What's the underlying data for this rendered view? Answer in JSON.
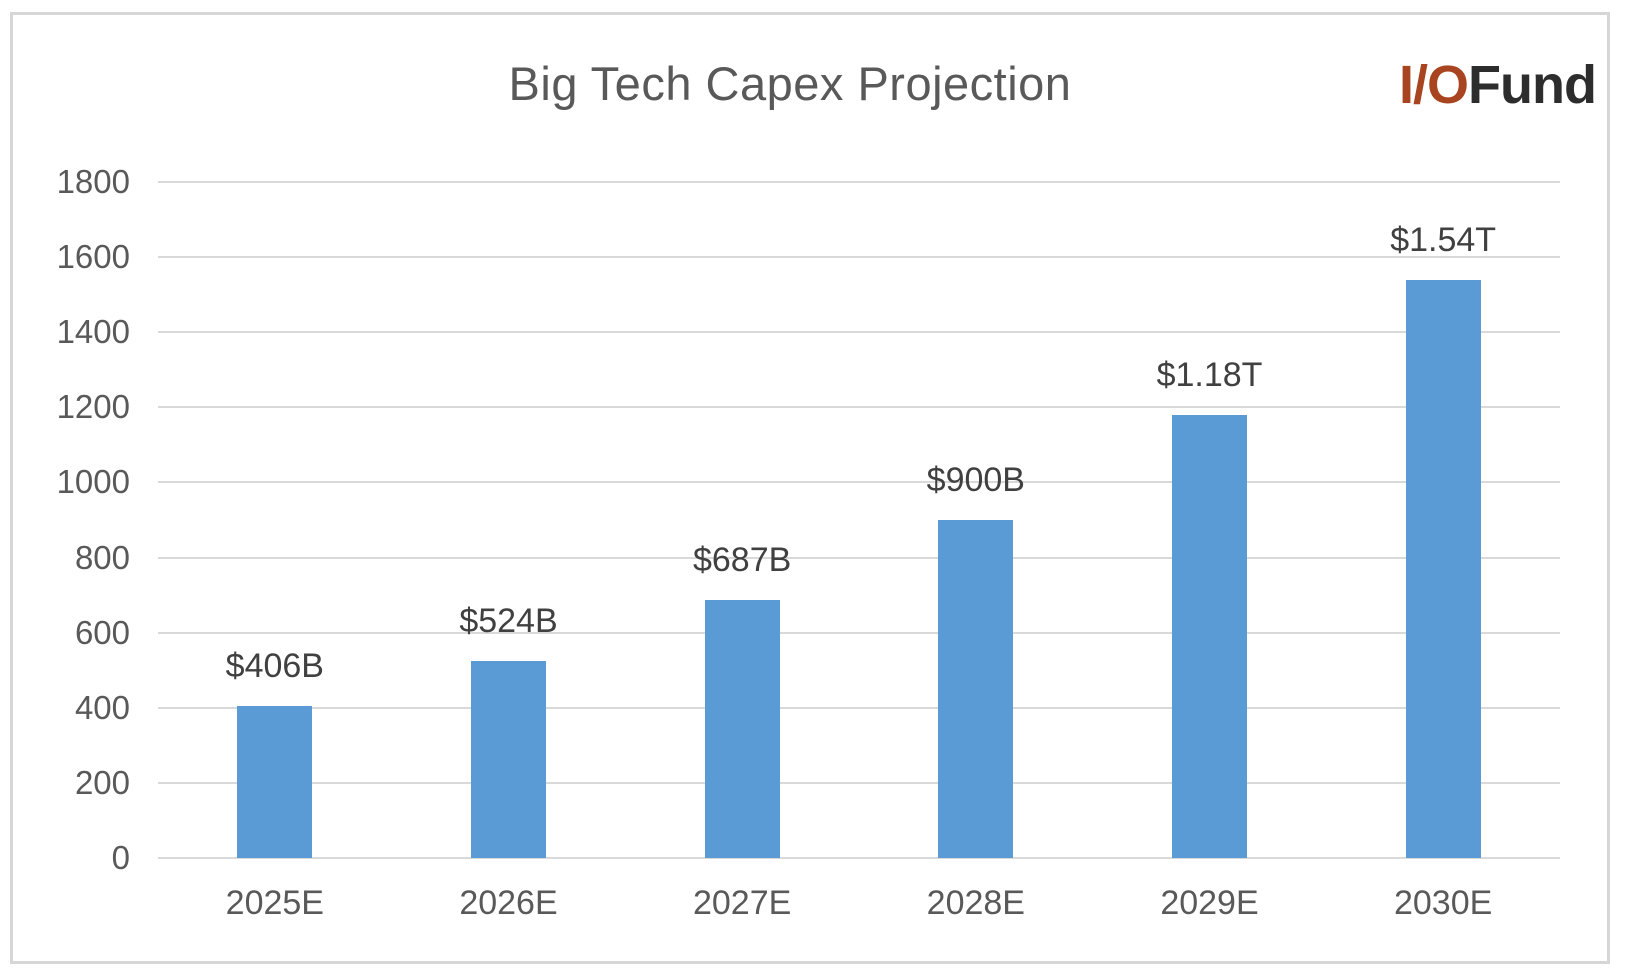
{
  "header": {
    "title": "Big Tech Capex Projection",
    "logo": {
      "prefix": "I/O",
      "suffix": "Fund",
      "prefix_color": "#a8441f",
      "suffix_color": "#2d2d2d"
    }
  },
  "chart_data": {
    "type": "bar",
    "title": "Big Tech Capex Projection",
    "categories": [
      "2025E",
      "2026E",
      "2027E",
      "2028E",
      "2029E",
      "2030E"
    ],
    "values": [
      406,
      524,
      687,
      900,
      1180,
      1540
    ],
    "data_labels": [
      "$406B",
      "$524B",
      "$687B",
      "$900B",
      "$1.18T",
      "$1.54T"
    ],
    "xlabel": "",
    "ylabel": "",
    "ylim": [
      0,
      1800
    ],
    "yticks": [
      0,
      200,
      400,
      600,
      800,
      1000,
      1200,
      1400,
      1600,
      1800
    ],
    "grid": true,
    "legend": "none",
    "bar_color": "#5b9bd5",
    "gridline_color": "#d9d9d9",
    "axis_text_color": "#595959",
    "data_label_color": "#404040"
  }
}
